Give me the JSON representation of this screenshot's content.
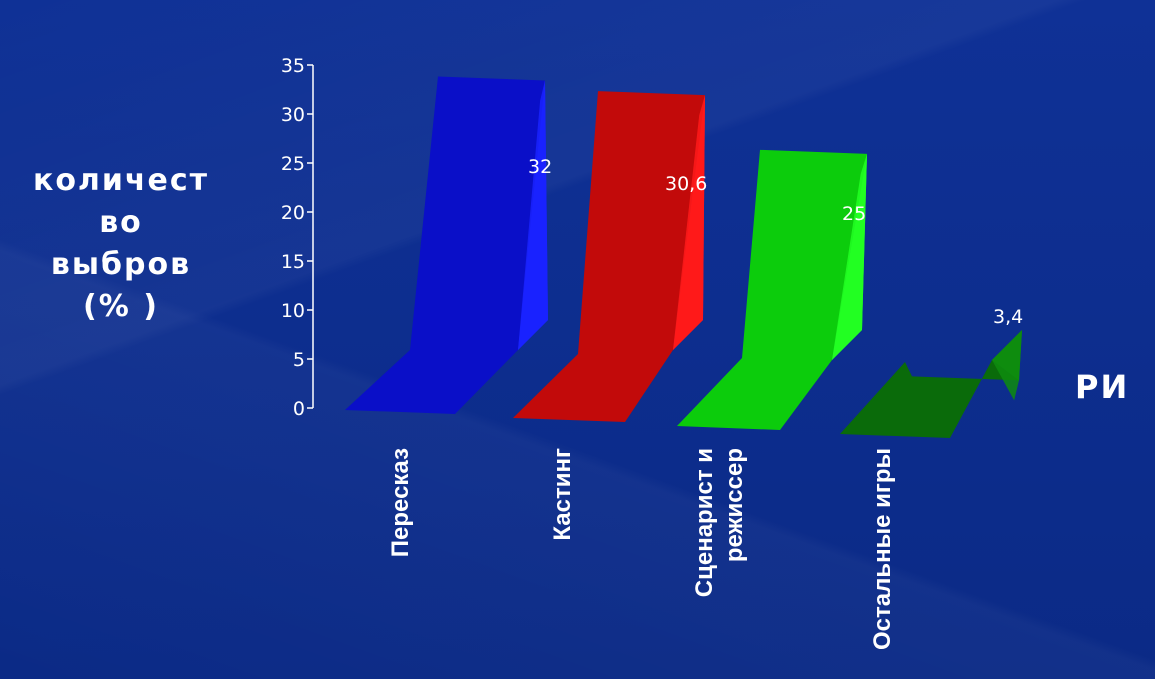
{
  "chart_data": {
    "type": "bar",
    "ylabel_lines": [
      "количест",
      "во",
      "выбров",
      "(% )"
    ],
    "categories": [
      [
        "Пересказ"
      ],
      [
        "Кастинг"
      ],
      [
        "Сценарист и",
        "режиссер"
      ],
      [
        "Остальные игры"
      ]
    ],
    "values": [
      32,
      30.6,
      25,
      3.4
    ],
    "value_labels": [
      "32",
      "30,6",
      "25",
      "3,4"
    ],
    "ylim": [
      0,
      35
    ],
    "yticks": [
      "0",
      "5",
      "10",
      "15",
      "20",
      "25",
      "30",
      "35"
    ],
    "colors": [
      "#0a0fc8",
      "#c20a0a",
      "#0ccc0c",
      "#0a6b0a"
    ],
    "side_colors": [
      "#1a22ff",
      "#ff1a1a",
      "#22ff22",
      "#0e8c0e"
    ],
    "corner_label": "РИ"
  }
}
